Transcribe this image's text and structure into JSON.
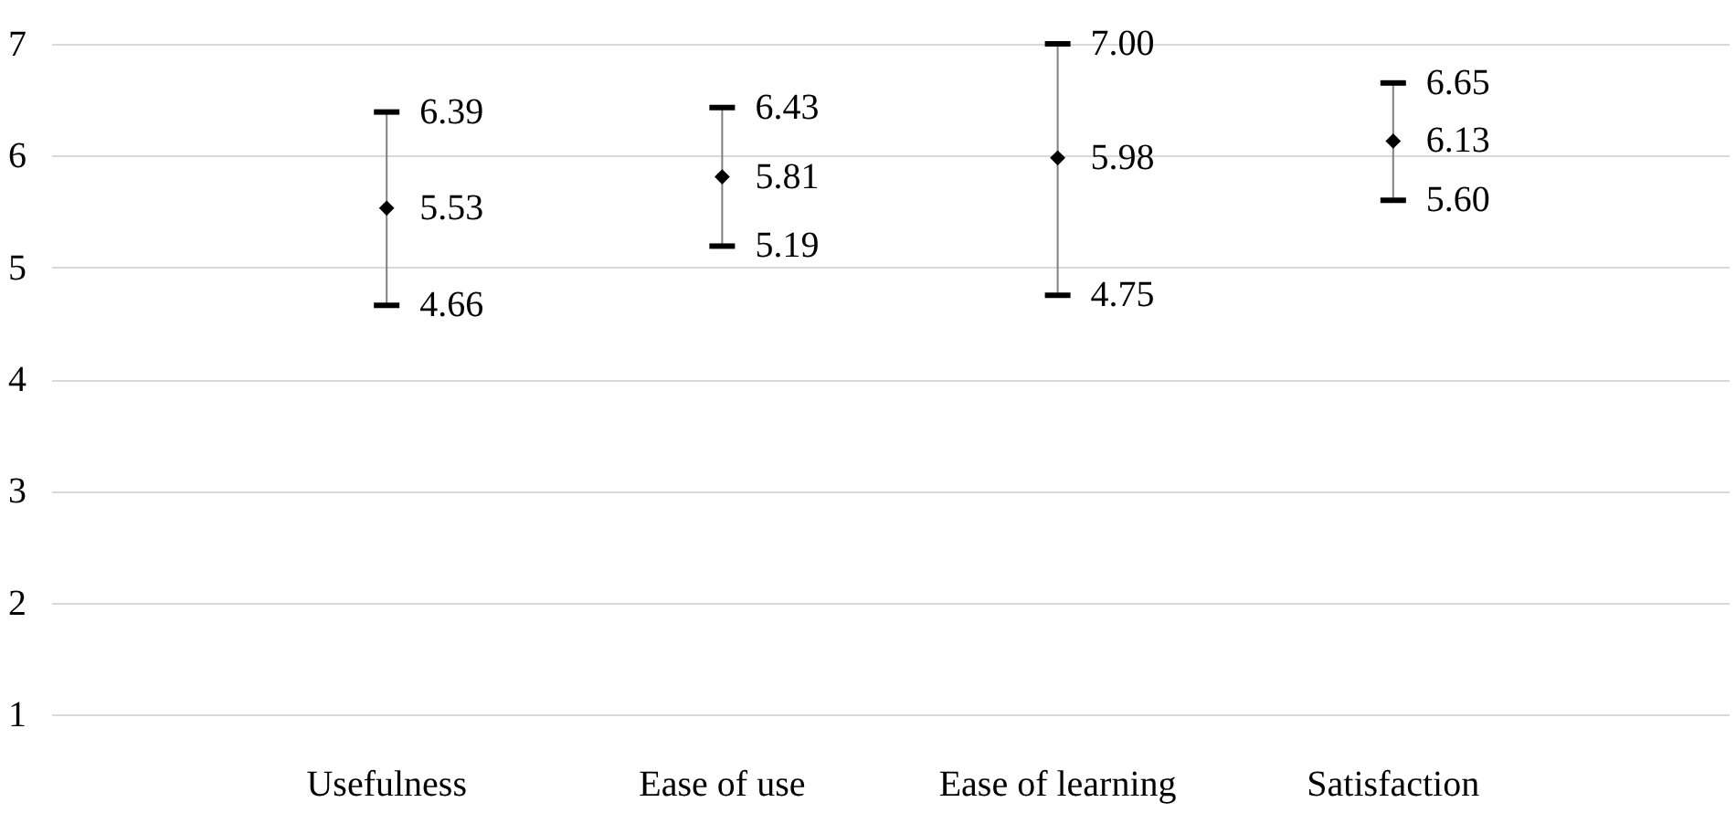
{
  "chart_data": {
    "type": "scatter",
    "categories": [
      "Usefulness",
      "Ease of use",
      "Ease of learning",
      "Satisfaction"
    ],
    "values": [
      5.53,
      5.81,
      5.98,
      6.13
    ],
    "errors": [
      [
        4.66,
        6.39
      ],
      [
        5.19,
        6.43
      ],
      [
        4.75,
        7.0
      ],
      [
        5.6,
        6.65
      ]
    ],
    "color": "#000000",
    "marker": "diamond",
    "data_labels": true,
    "ylim": [
      1,
      7
    ],
    "yticks": [
      1,
      2,
      3,
      4,
      5,
      6,
      7
    ],
    "grid": "y",
    "annotations": [
      {
        "text": "6.39",
        "x": "Usefulness",
        "y": 6.39
      },
      {
        "text": "4.66",
        "x": "Usefulness",
        "y": 4.66
      },
      {
        "text": "6.43",
        "x": "Ease of use",
        "y": 6.43
      },
      {
        "text": "5.19",
        "x": "Ease of use",
        "y": 5.19
      },
      {
        "text": "7.00",
        "x": "Ease of learning",
        "y": 7.0
      },
      {
        "text": "4.75",
        "x": "Ease of learning",
        "y": 4.75
      },
      {
        "text": "6.65",
        "x": "Satisfaction",
        "y": 6.65
      },
      {
        "text": "5.60",
        "x": "Satisfaction",
        "y": 5.6
      }
    ]
  }
}
